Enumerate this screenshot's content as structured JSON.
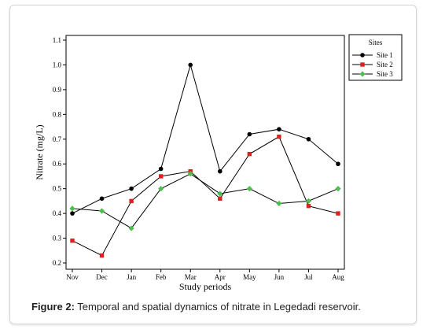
{
  "chart_data": {
    "type": "line",
    "ylabel": "Nitrate (mg/L)",
    "xlabel": "Study periods",
    "categories": [
      "Nov",
      "Dec",
      "Jan",
      "Feb",
      "Mar",
      "Apr",
      "May",
      "Jun",
      "Jul",
      "Aug"
    ],
    "ylim": [
      0.2,
      1.1
    ],
    "yticks": [
      "0.2",
      "0.3",
      "0.4",
      "0.5",
      "0.6",
      "0.7",
      "0.8",
      "0.9",
      "1.0",
      "1.1"
    ],
    "legend_title": "Sites",
    "legend_position": "top-right, outside plot",
    "series": [
      {
        "name": "Site 1",
        "color": "#000000",
        "marker": "circle",
        "values": [
          0.4,
          0.46,
          0.5,
          0.58,
          1.0,
          0.57,
          0.72,
          0.74,
          0.7,
          0.6
        ]
      },
      {
        "name": "Site 2",
        "color": "#e02020",
        "marker": "square",
        "values": [
          0.29,
          0.23,
          0.45,
          0.55,
          0.57,
          0.46,
          0.64,
          0.71,
          0.43,
          0.4
        ]
      },
      {
        "name": "Site 3",
        "color": "#4cbf4c",
        "marker": "diamond",
        "values": [
          0.42,
          0.41,
          0.34,
          0.5,
          0.56,
          0.48,
          0.5,
          0.44,
          0.45,
          0.5
        ]
      }
    ]
  },
  "caption": {
    "label": "Figure 2:",
    "text": " Temporal and spatial dynamics of nitrate in Legedadi reservoir."
  }
}
